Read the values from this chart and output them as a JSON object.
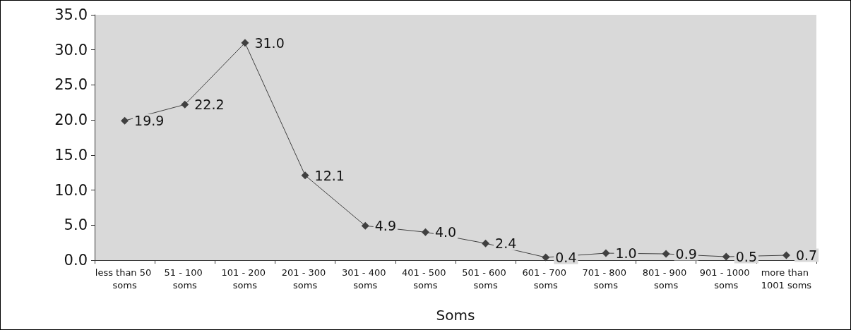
{
  "chart_data": {
    "type": "line",
    "xlabel": "Soms",
    "categories": [
      "less than 50 soms",
      "51 - 100 soms",
      "101 - 200 soms",
      "201 - 300 soms",
      "301 - 400 soms",
      "401 - 500 soms",
      "501 - 600 soms",
      "601 - 700 soms",
      "701 - 800 soms",
      "801 - 900 soms",
      "901 - 1000 soms",
      "more than 1001 soms"
    ],
    "series": [
      {
        "color": "#404040",
        "values": [
          19.9,
          22.2,
          31.0,
          12.1,
          4.9,
          4.0,
          2.4,
          0.4,
          1.0,
          0.9,
          0.5,
          0.7
        ],
        "value_labels": [
          "19.9",
          "22.2",
          "31.0",
          "12.1",
          "4.9",
          "4.0",
          "2.4",
          "0.4",
          "1.0",
          "0.9",
          "0.5",
          "0.7"
        ]
      }
    ],
    "ylim": [
      0,
      35
    ],
    "yticks": [
      {
        "value": 0,
        "label": "0.0"
      },
      {
        "value": 5,
        "label": "5.0"
      },
      {
        "value": 10,
        "label": "10.0"
      },
      {
        "value": 15,
        "label": "15.0"
      },
      {
        "value": 20,
        "label": "20.0"
      },
      {
        "value": 25,
        "label": "25.0"
      },
      {
        "value": 30,
        "label": "30.0"
      },
      {
        "value": 35,
        "label": "35.0"
      }
    ],
    "grid": false,
    "marker": "diamond",
    "line_style": "solid"
  }
}
